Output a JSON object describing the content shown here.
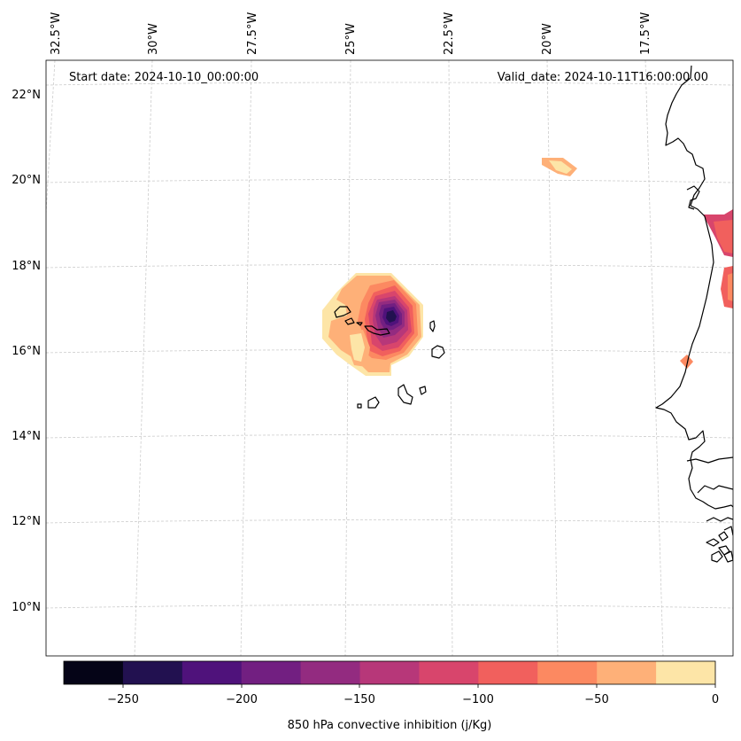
{
  "header": {
    "start_date": "Start date: 2024-10-10_00:00:00",
    "valid_date": "Valid_date: 2024-10-11T16:00:00.00"
  },
  "lon_labels": [
    "32.5°W",
    "30°W",
    "27.5°W",
    "25°W",
    "22.5°W",
    "20°W",
    "17.5°W"
  ],
  "lat_labels": [
    "22°N",
    "20°N",
    "18°N",
    "16°N",
    "14°N",
    "12°N",
    "10°N"
  ],
  "colorbar": {
    "label": "850 hPa convective inhibition (j/Kg)",
    "ticks": [
      "−250",
      "−200",
      "−150",
      "−100",
      "−50",
      "0"
    ],
    "levels": [
      -275,
      -250,
      -225,
      -200,
      -175,
      -150,
      -125,
      -100,
      -75,
      -50,
      -25,
      0
    ],
    "colors": [
      "#050417",
      "#221150",
      "#4f127b",
      "#721f81",
      "#932b80",
      "#b73779",
      "#d8456c",
      "#f1605d",
      "#fc8961",
      "#feb078",
      "#fde5a7"
    ]
  },
  "colors": {
    "gridline": "#cccccc",
    "coastline": "#000000"
  }
}
